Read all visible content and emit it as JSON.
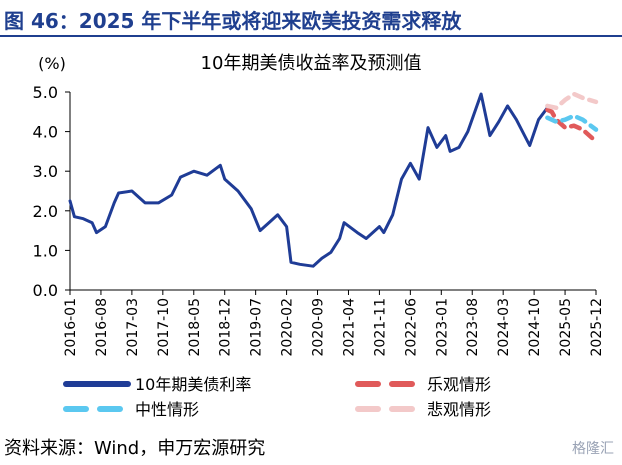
{
  "header": {
    "title": "图 46：2025 年下半年或将迎来欧美投资需求释放"
  },
  "footer": {
    "source": "资料来源：Wind，申万宏源研究",
    "watermark": "格隆汇"
  },
  "colors": {
    "header_text": "#1f3f8f",
    "actual": "#1f3c96",
    "optimistic": "#e05a5a",
    "neutral": "#5bc8f0",
    "pessimistic": "#f3c9c9"
  },
  "chart_data": {
    "type": "line",
    "title": "10年期美债收益率及预测值",
    "unit_label": "(%)",
    "ylim": [
      0,
      5
    ],
    "yticks": [
      "0.0",
      "1.0",
      "2.0",
      "3.0",
      "4.0",
      "5.0"
    ],
    "xticks": [
      "2016-01",
      "2016-08",
      "2017-03",
      "2017-10",
      "2018-05",
      "2018-12",
      "2019-07",
      "2020-02",
      "2020-09",
      "2021-04",
      "2021-11",
      "2022-06",
      "2023-01",
      "2023-08",
      "2024-03",
      "2024-10",
      "2025-05",
      "2025-12"
    ],
    "series": [
      {
        "name": "10年期美债利率",
        "style": "solid",
        "x": [
          "2016-01",
          "2016-02",
          "2016-04",
          "2016-06",
          "2016-07",
          "2016-09",
          "2016-11",
          "2016-12",
          "2017-03",
          "2017-06",
          "2017-09",
          "2017-12",
          "2018-02",
          "2018-05",
          "2018-08",
          "2018-11",
          "2018-12",
          "2019-03",
          "2019-06",
          "2019-08",
          "2019-10",
          "2019-12",
          "2020-02",
          "2020-03",
          "2020-05",
          "2020-08",
          "2020-10",
          "2020-12",
          "2021-02",
          "2021-03",
          "2021-06",
          "2021-08",
          "2021-11",
          "2021-12",
          "2022-02",
          "2022-04",
          "2022-06",
          "2022-08",
          "2022-10",
          "2022-12",
          "2023-02",
          "2023-03",
          "2023-05",
          "2023-07",
          "2023-10",
          "2023-12",
          "2024-02",
          "2024-04",
          "2024-06",
          "2024-09",
          "2024-11",
          "2025-01"
        ],
        "y": [
          2.25,
          1.85,
          1.8,
          1.7,
          1.45,
          1.6,
          2.2,
          2.45,
          2.5,
          2.2,
          2.2,
          2.4,
          2.85,
          3.0,
          2.9,
          3.15,
          2.8,
          2.5,
          2.05,
          1.5,
          1.7,
          1.9,
          1.6,
          0.7,
          0.65,
          0.6,
          0.8,
          0.95,
          1.3,
          1.7,
          1.45,
          1.3,
          1.6,
          1.45,
          1.9,
          2.8,
          3.2,
          2.8,
          4.1,
          3.6,
          3.9,
          3.5,
          3.6,
          4.0,
          4.95,
          3.9,
          4.25,
          4.65,
          4.3,
          3.65,
          4.3,
          4.6
        ]
      },
      {
        "name": "乐观情形",
        "style": "dashed",
        "x": [
          "2025-01",
          "2025-02",
          "2025-03",
          "2025-05",
          "2025-07",
          "2025-09",
          "2025-12"
        ],
        "y": [
          4.55,
          4.5,
          4.3,
          4.1,
          4.15,
          4.05,
          3.75
        ]
      },
      {
        "name": "中性情形",
        "style": "dashed",
        "x": [
          "2025-01",
          "2025-03",
          "2025-05",
          "2025-07",
          "2025-09",
          "2025-12"
        ],
        "y": [
          4.35,
          4.25,
          4.3,
          4.4,
          4.3,
          4.05
        ]
      },
      {
        "name": "悲观情形",
        "style": "dashed",
        "x": [
          "2025-01",
          "2025-03",
          "2025-05",
          "2025-07",
          "2025-09",
          "2025-12"
        ],
        "y": [
          4.65,
          4.6,
          4.8,
          4.95,
          4.85,
          4.75
        ]
      }
    ],
    "legend_position": "bottom"
  }
}
